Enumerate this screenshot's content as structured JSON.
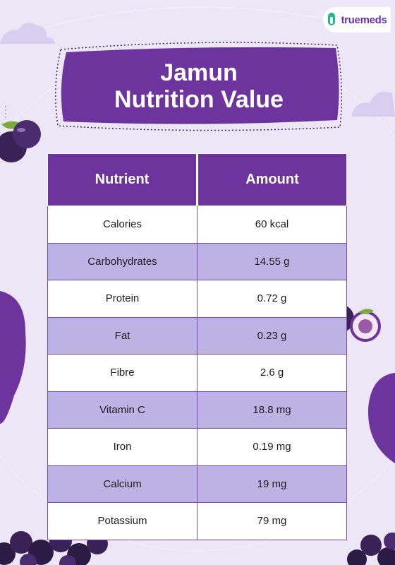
{
  "brand": {
    "name": "truemeds"
  },
  "title": {
    "line1": "Jamun",
    "line2": "Nutrition Value"
  },
  "table": {
    "headers": [
      "Nutrient",
      "Amount"
    ],
    "rows": [
      [
        "Calories",
        "60 kcal"
      ],
      [
        "Carbohydrates",
        "14.55 g"
      ],
      [
        "Protein",
        "0.72 g"
      ],
      [
        "Fat",
        "0.23 g"
      ],
      [
        "Fibre",
        "2.6 g"
      ],
      [
        "Vitamin C",
        "18.8 mg"
      ],
      [
        "Iron",
        "0.19 mg"
      ],
      [
        "Calcium",
        "19 mg"
      ],
      [
        "Potassium",
        "79 mg"
      ]
    ]
  },
  "colors": {
    "primary": "#6c349c",
    "alt_row": "#bdb2e4",
    "background": "#ece6f7"
  },
  "icons": [
    "brand-logo-icon",
    "jamun-fruit-icon",
    "cloud-icon"
  ]
}
